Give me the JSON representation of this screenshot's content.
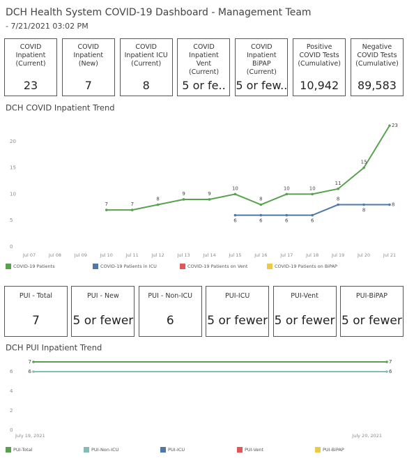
{
  "header": {
    "title": "DCH Health System COVID-19 Dashboard - Management Team",
    "subtitle": "- 7/21/2021 03:02 PM"
  },
  "cards": [
    {
      "title": "COVID Inpatient (Current)",
      "value": "23"
    },
    {
      "title": "COVID Inpatient (New)",
      "value": "7"
    },
    {
      "title": "COVID Inpatient ICU (Current)",
      "value": "8"
    },
    {
      "title": "COVID Inpatient Vent (Current)",
      "value": "5 or fe.."
    },
    {
      "title": "COVID Inpatient BiPAP (Current)",
      "value": "5 or few.."
    },
    {
      "title": "Positive COVID Tests (Cumulative)",
      "value": "10,942"
    },
    {
      "title": "Negative COVID Tests (Cumulative)",
      "value": "89,583"
    }
  ],
  "pui_cards": [
    {
      "title": "PUI - Total",
      "value": "7"
    },
    {
      "title": "PUI - New",
      "value": "5 or fewer"
    },
    {
      "title": "PUI - Non-ICU",
      "value": "6"
    },
    {
      "title": "PUI-ICU",
      "value": "5 or fewer"
    },
    {
      "title": "PUI-Vent",
      "value": "5 or fewer"
    },
    {
      "title": "PUI-BiPAP",
      "value": "5 or fewer"
    }
  ],
  "chart_data": [
    {
      "type": "line",
      "title": "DCH COVID Inpatient Trend",
      "categories": [
        "Jul 07",
        "Jul 08",
        "Jul 09",
        "Jul 10",
        "Jul 11",
        "Jul 12",
        "Jul 13",
        "Jul 14",
        "Jul 15",
        "Jul 16",
        "Jul 17",
        "Jul 18",
        "Jul 19",
        "Jul 20",
        "Jul 21"
      ],
      "series": [
        {
          "name": "COVID-19 Patients",
          "color": "#59a14f",
          "values": [
            null,
            null,
            null,
            7,
            7,
            8,
            9,
            9,
            10,
            8,
            10,
            10,
            11,
            15,
            23
          ]
        },
        {
          "name": "COVID-19 Patients in ICU",
          "color": "#4e79a7",
          "values": [
            null,
            null,
            null,
            null,
            null,
            null,
            null,
            null,
            6,
            6,
            6,
            6,
            8,
            8,
            8
          ]
        },
        {
          "name": "COVID-19 Patients on Vent",
          "color": "#e15759",
          "values": [
            null,
            null,
            null,
            null,
            null,
            null,
            null,
            null,
            null,
            null,
            null,
            null,
            null,
            null,
            null
          ]
        },
        {
          "name": "COVID-19 Patients on BiPAP",
          "color": "#edc948",
          "values": [
            null,
            null,
            null,
            null,
            null,
            null,
            null,
            null,
            null,
            null,
            null,
            null,
            null,
            null,
            null
          ]
        }
      ],
      "ylim": [
        0,
        25
      ],
      "yticks": [
        0,
        5,
        10,
        15,
        20
      ],
      "grid": false,
      "legend": "bottom"
    },
    {
      "type": "line",
      "title": "DCH PUI Inpatient Trend",
      "categories": [
        "July 19, 2021",
        "July 20, 2021"
      ],
      "series": [
        {
          "name": "PUI-Total",
          "color": "#59a14f",
          "values": [
            7,
            7
          ]
        },
        {
          "name": "PUI-Non-ICU",
          "color": "#86bcb6",
          "values": [
            6,
            6
          ]
        },
        {
          "name": "PUI-ICU",
          "color": "#4e79a7",
          "values": [
            null,
            null
          ]
        },
        {
          "name": "PUI-Vent",
          "color": "#e15759",
          "values": [
            null,
            null
          ]
        },
        {
          "name": "PUI-BiPAP",
          "color": "#edc948",
          "values": [
            null,
            null
          ]
        }
      ],
      "ylim": [
        0,
        8
      ],
      "yticks": [
        0,
        2,
        4,
        6
      ],
      "grid": false,
      "legend": "bottom"
    }
  ]
}
